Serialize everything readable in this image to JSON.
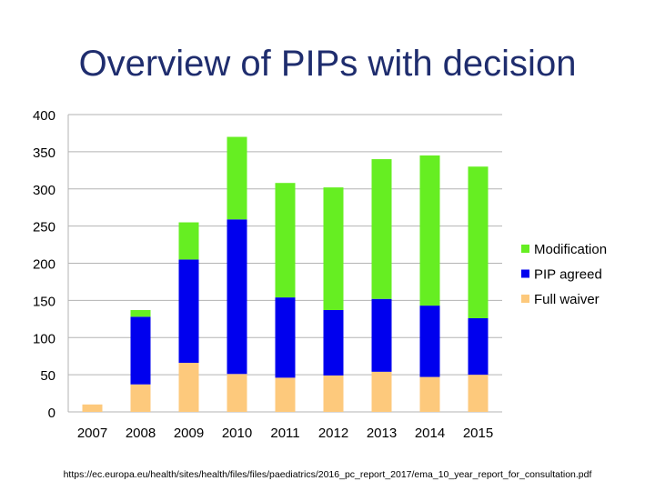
{
  "title": "Overview of PIPs with decision",
  "source": "https://ec.europa.eu/health/sites/health/files/files/paediatrics/2016_pc_report_2017/ema_10_year_report_for_consultation.pdf",
  "chart_data": {
    "type": "bar",
    "stacked": true,
    "title": "Overview of PIPs with decision",
    "xlabel": "",
    "ylabel": "",
    "ylim": [
      0,
      400
    ],
    "yticks": [
      0,
      50,
      100,
      150,
      200,
      250,
      300,
      350,
      400
    ],
    "grid": true,
    "legend_position": "right",
    "categories": [
      "2007",
      "2008",
      "2009",
      "2010",
      "2011",
      "2012",
      "2013",
      "2014",
      "2015"
    ],
    "series": [
      {
        "name": "Full waiver",
        "color": "#fdc97c",
        "values": [
          10,
          37,
          66,
          51,
          46,
          49,
          54,
          47,
          50
        ]
      },
      {
        "name": "PIP agreed",
        "color": "#0000ee",
        "values": [
          0,
          91,
          139,
          208,
          108,
          88,
          98,
          96,
          76
        ]
      },
      {
        "name": "Modification",
        "color": "#66ee22",
        "values": [
          0,
          9,
          50,
          111,
          154,
          165,
          188,
          202,
          204
        ]
      }
    ],
    "legend_order": [
      "Modification",
      "PIP agreed",
      "Full waiver"
    ]
  }
}
